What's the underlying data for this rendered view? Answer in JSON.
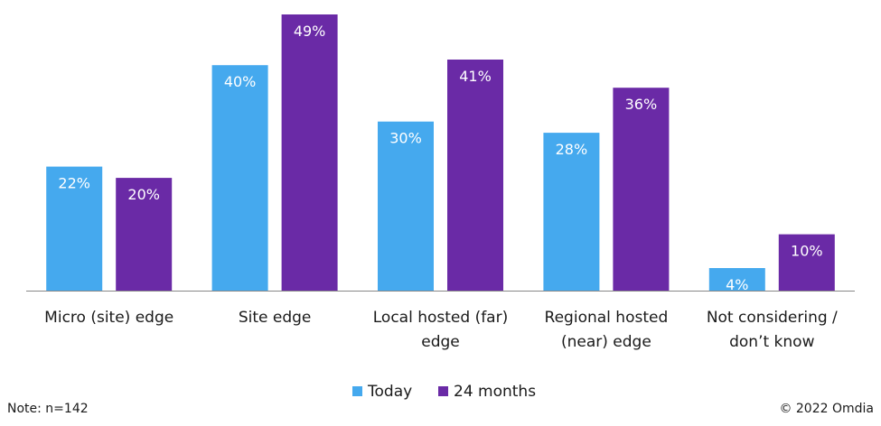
{
  "chart_data": {
    "type": "bar",
    "categories": [
      [
        "Micro (site) edge"
      ],
      [
        "Site edge"
      ],
      [
        "Local hosted (far)",
        "edge"
      ],
      [
        "Regional hosted",
        "(near) edge"
      ],
      [
        "Not considering /",
        "don’t know"
      ]
    ],
    "series": [
      {
        "name": "Today",
        "color": "#45a9ee",
        "values": [
          22,
          40,
          30,
          28,
          4
        ],
        "labels": [
          "22%",
          "40%",
          "30%",
          "28%",
          "4%"
        ]
      },
      {
        "name": "24 months",
        "color": "#6a2aa6",
        "values": [
          20,
          49,
          41,
          36,
          10
        ],
        "labels": [
          "20%",
          "49%",
          "41%",
          "36%",
          "10%"
        ]
      }
    ],
    "ylim": [
      0,
      49
    ],
    "grid": false,
    "legend_position": "bottom",
    "axis_color": "#888888"
  },
  "footer": {
    "note": "Note: n=142",
    "copyright": "© 2022 Omdia"
  }
}
